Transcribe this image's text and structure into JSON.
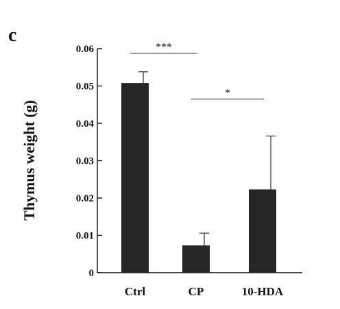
{
  "panel_label": "c",
  "chart_data": {
    "type": "bar",
    "ylabel": "Thymus weight (g)",
    "categories": [
      "Ctrl",
      "CP",
      "10-HDA"
    ],
    "values": [
      0.0508,
      0.0073,
      0.0223
    ],
    "errors": [
      0.003,
      0.0033,
      0.0143
    ],
    "ylim": [
      0,
      0.06
    ],
    "yticks": [
      "0",
      "0.01",
      "0.02",
      "0.03",
      "0.04",
      "0.05",
      "0.06"
    ],
    "bar_color": "#262626",
    "grid": false,
    "significance": [
      {
        "from": 0,
        "to": 1,
        "label": "***",
        "y": 0.0588
      },
      {
        "from": 1,
        "to": 2,
        "label": "*",
        "y": 0.0465
      }
    ]
  }
}
